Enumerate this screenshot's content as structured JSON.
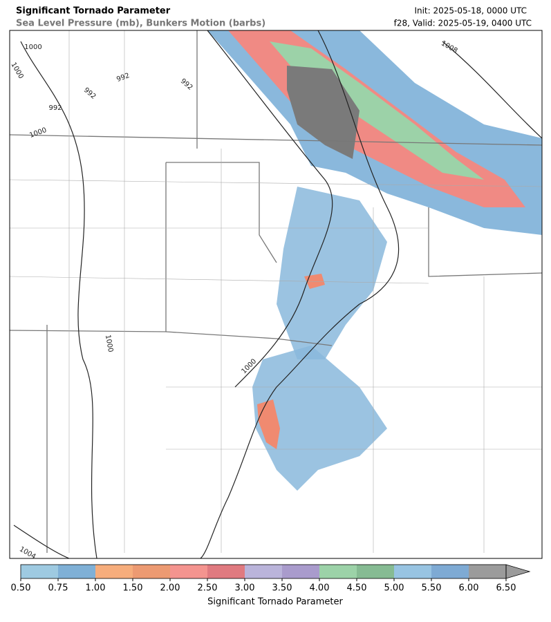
{
  "header": {
    "title": "Significant Tornado Parameter",
    "subtitle": "Sea Level Pressure (mb), Bunkers Motion (barbs)",
    "init": "Init: 2025-05-18, 0000 UTC",
    "valid": "f28, Valid: 2025-05-19, 0400 UTC"
  },
  "contour_labels": [
    "1000",
    "1000",
    "992",
    "992",
    "992",
    "992",
    "1008",
    "1000",
    "1000",
    "1000",
    "1004"
  ],
  "colorbar": {
    "label": "Significant Tornado Parameter",
    "ticks": [
      {
        "value": 0.5,
        "label": "0.50"
      },
      {
        "value": 0.75,
        "label": "0.75"
      },
      {
        "value": 1.0,
        "label": "1.00"
      },
      {
        "value": 1.5,
        "label": "1.50"
      },
      {
        "value": 2.0,
        "label": "2.00"
      },
      {
        "value": 2.5,
        "label": "2.50"
      },
      {
        "value": 3.0,
        "label": "3.00"
      },
      {
        "value": 3.5,
        "label": "3.50"
      },
      {
        "value": 4.0,
        "label": "4.00"
      },
      {
        "value": 4.5,
        "label": "4.50"
      },
      {
        "value": 5.0,
        "label": "5.00"
      },
      {
        "value": 5.5,
        "label": "5.50"
      },
      {
        "value": 6.0,
        "label": "6.00"
      },
      {
        "value": 6.5,
        "label": "6.50"
      }
    ],
    "colors": [
      "#9ecae1",
      "#7fb0d6",
      "#f6ad7c",
      "#ec9a72",
      "#f4948f",
      "#e07a80",
      "#bab4da",
      "#a99bcc",
      "#9cd2a8",
      "#86bb93",
      "#98c4e2",
      "#7eaad4",
      "#9b9b9b"
    ],
    "extend_color": "#9b9b9b"
  }
}
